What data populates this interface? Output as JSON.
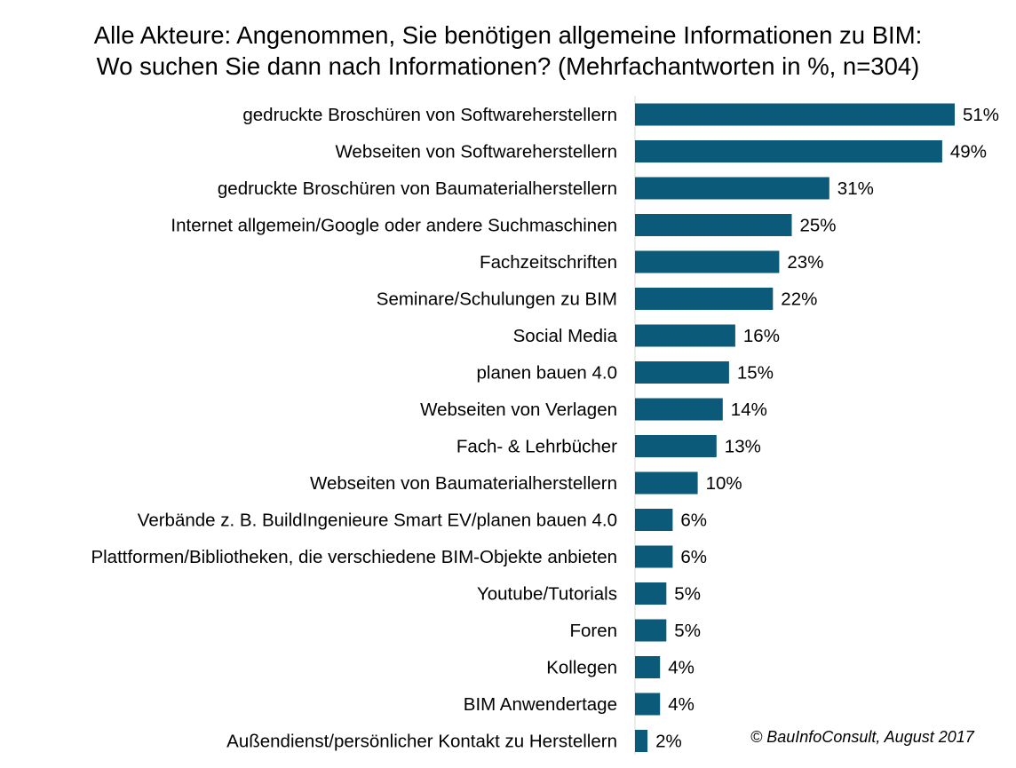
{
  "chart_data": {
    "type": "bar",
    "orientation": "horizontal",
    "title_lines": [
      "Alle Akteure: Angenommen, Sie benötigen allgemeine Informationen zu BIM:",
      "Wo suchen Sie dann nach Informationen? (Mehrfachantworten in %, n=304)"
    ],
    "categories": [
      "gedruckte Broschüren von Softwareherstellern",
      "Webseiten von Softwareherstellern",
      "gedruckte Broschüren von Baumaterialherstellern",
      "Internet allgemein/Google oder andere Suchmaschinen",
      "Fachzeitschriften",
      "Seminare/Schulungen zu BIM",
      "Social Media",
      "planen bauen 4.0",
      "Webseiten von Verlagen",
      "Fach- & Lehrbücher",
      "Webseiten von Baumaterialherstellern",
      "Verbände z. B. BuildIngenieure Smart EV/planen bauen 4.0",
      "Plattformen/Bibliotheken, die verschiedene BIM-Objekte anbieten",
      "Youtube/Tutorials",
      "Foren",
      "Kollegen",
      "BIM Anwendertage",
      "Außendienst/persönlicher Kontakt zu Herstellern"
    ],
    "values": [
      51,
      49,
      31,
      25,
      23,
      22,
      16,
      15,
      14,
      13,
      10,
      6,
      6,
      5,
      5,
      4,
      4,
      2
    ],
    "value_labels": [
      "51%",
      "49%",
      "31%",
      "25%",
      "23%",
      "22%",
      "16%",
      "15%",
      "14%",
      "13%",
      "10%",
      "6%",
      "6%",
      "5%",
      "5%",
      "4%",
      "4%",
      "2%"
    ],
    "unit": "%",
    "xlim": [
      0,
      51
    ],
    "grid": false,
    "bar_color": "#0b5a7a",
    "source": "© BauInfoConsult, August 2017"
  }
}
